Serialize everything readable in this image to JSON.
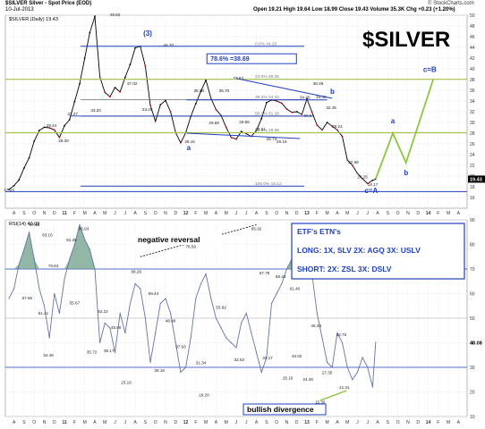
{
  "header": {
    "symbol_line": "$SILVER Silver - Spot Price (EOD)",
    "date": "10-Jul-2013",
    "quote": "Open 19.21  High 19.64  Low 18.99  Close 19.43  Volume 35.3K  Chg +0.23 (+1.20%)",
    "credit": "© StockCharts.com",
    "legend": "$SILVER (Daily) 19.43",
    "rsi_legend": "RSI(14) 40.08"
  },
  "title": "$SILVER",
  "colors": {
    "price": "#000000",
    "down": "#cc0000",
    "channel": "#1f3fbf",
    "fib_green": "#a6c24b",
    "projection": "#8dc63f",
    "rsi_line": "#6674a3",
    "rsi_fill": "#6f9f8a",
    "wave": "#1f3fbf"
  },
  "annotations": {
    "wave3": "(3)",
    "retrace_box": "78.6% =38.69",
    "wave_a1": "a",
    "wave_b1": "b",
    "wave_c_eq_a": "c=A",
    "proj_a": "a",
    "proj_b": "b",
    "proj_c_eq_b": "c=B",
    "negative_reversal": "negative reversal",
    "bullish_divergence": "bullish divergence",
    "etf_title": "ETF's ETN's",
    "etf_long": "LONG: 1X, SLV   2X: AGQ   3X: USLV",
    "etf_short": "SHORT:            2X: ZSL   3X: DSLV"
  },
  "fib_levels": [
    {
      "label": "0.0% 44.20",
      "value": 44.2
    },
    {
      "label": "23.6% 38.05",
      "value": 38.05
    },
    {
      "label": "38.2% 34.24",
      "value": 34.24
    },
    {
      "label": "50.0% 31.16",
      "value": 31.16
    },
    {
      "label": "61.8% 28.08",
      "value": 28.08
    },
    {
      "label": "100.0% 18.12",
      "value": 18.12
    }
  ],
  "chart_data": [
    {
      "type": "line",
      "name": "price",
      "ylim": [
        14,
        50
      ],
      "yticks": [
        16,
        18,
        20,
        22,
        24,
        26,
        28,
        30,
        32,
        34,
        36,
        38,
        40,
        42,
        44,
        46,
        48,
        50
      ],
      "last_value_label": "19.43",
      "x_labels": [
        "A",
        "S",
        "O",
        "N",
        "D",
        "11",
        "F",
        "M",
        "A",
        "M",
        "J",
        "J",
        "A",
        "S",
        "O",
        "N",
        "D",
        "12",
        "F",
        "M",
        "A",
        "M",
        "J",
        "J",
        "A",
        "S",
        "O",
        "N",
        "D",
        "13",
        "F",
        "M",
        "A",
        "M",
        "J",
        "J",
        "A",
        "S",
        "O",
        "N",
        "D",
        "14",
        "F",
        "M",
        "A"
      ],
      "x": [
        0,
        0.5,
        1,
        1.5,
        2,
        2.5,
        3,
        3.5,
        4,
        4.5,
        5,
        5.5,
        6,
        6.5,
        7,
        7.5,
        8,
        8.5,
        9,
        9.5,
        10,
        10.5,
        11,
        11.5,
        12,
        12.5,
        13,
        13.5,
        14,
        14.5,
        15,
        15.5,
        16,
        16.5,
        17,
        17.5,
        18,
        18.5,
        19,
        19.5,
        20,
        20.5,
        21,
        21.5,
        22,
        22.5,
        23,
        23.5,
        24,
        24.5,
        25,
        25.5,
        26,
        26.5,
        27,
        27.5,
        28,
        28.5,
        29,
        29.5,
        30,
        30.5,
        31,
        31.5,
        32,
        32.5,
        33,
        33.5,
        34,
        34.5,
        35,
        35.5,
        36,
        36.3
      ],
      "values": [
        17.5,
        18.2,
        19.3,
        21.5,
        23.4,
        26.5,
        28.5,
        29.1,
        29.0,
        28.6,
        27.2,
        29.4,
        30.5,
        33.9,
        37.2,
        42.0,
        46.7,
        49.8,
        38.5,
        35.6,
        34.8,
        36.5,
        35.7,
        38.4,
        40.8,
        43.9,
        44.2,
        40.5,
        33.2,
        30.2,
        33.3,
        34.1,
        32.0,
        28.1,
        26.2,
        28.1,
        31.1,
        33.5,
        35.8,
        37.9,
        34.5,
        32.4,
        31.3,
        29.1,
        27.2,
        26.9,
        28.3,
        27.9,
        27.4,
        28.5,
        30.7,
        33.7,
        34.2,
        34.0,
        33.6,
        32.5,
        31.9,
        32.0,
        31.5,
        34.4,
        31.9,
        29.5,
        28.6,
        30.0,
        29.3,
        28.6,
        27.4,
        23.0,
        22.0,
        20.5,
        19.5,
        18.6,
        19.2,
        19.43
      ],
      "labels": [
        {
          "x": 0,
          "y": 17.2,
          "t": "17.23"
        },
        {
          "x": 4.2,
          "y": 29.2,
          "t": "29.24"
        },
        {
          "x": 5.4,
          "y": 26.3,
          "t": "26.30"
        },
        {
          "x": 6.3,
          "y": 31.3,
          "t": "31.27"
        },
        {
          "x": 8.6,
          "y": 32.0,
          "t": "33.20"
        },
        {
          "x": 10.5,
          "y": 49.8,
          "t": "49.82"
        },
        {
          "x": 12.2,
          "y": 37.0,
          "t": "37.02"
        },
        {
          "x": 13.7,
          "y": 32.2,
          "t": "33.28"
        },
        {
          "x": 15.8,
          "y": 44.2,
          "t": "44.20"
        },
        {
          "x": 17.9,
          "y": 26.2,
          "t": "26.15"
        },
        {
          "x": 18.8,
          "y": 35.7,
          "t": "35.70"
        },
        {
          "x": 20.3,
          "y": 29.7,
          "t": "29.65"
        },
        {
          "x": 21.3,
          "y": 35.7,
          "t": "35.70"
        },
        {
          "x": 23.3,
          "y": 29.8,
          "t": "29.86"
        },
        {
          "x": 22.7,
          "y": 38.0,
          "t": "37.83"
        },
        {
          "x": 24.9,
          "y": 28.5,
          "t": "28.51"
        },
        {
          "x": 26.0,
          "y": 26.7,
          "t": "26.73"
        },
        {
          "x": 27.0,
          "y": 26.2,
          "t": "26.15"
        },
        {
          "x": 29.3,
          "y": 34.4,
          "t": "34.45"
        },
        {
          "x": 29.7,
          "y": 31.0,
          "t": "30.66"
        },
        {
          "x": 30.9,
          "y": 34.5,
          "t": "34.40"
        },
        {
          "x": 30.6,
          "y": 37.0,
          "t": "36.48"
        },
        {
          "x": 31.9,
          "y": 32.5,
          "t": "32.45"
        },
        {
          "x": 32.5,
          "y": 29.0,
          "t": "29.24"
        },
        {
          "x": 34.1,
          "y": 22.3,
          "t": "22.68"
        },
        {
          "x": 35.0,
          "y": 19.6,
          "t": "20.25"
        },
        {
          "x": 36.0,
          "y": 18.2,
          "t": "18.17"
        }
      ]
    },
    {
      "type": "line",
      "name": "RSI(14)",
      "ylim": [
        10,
        90
      ],
      "yticks": [
        10,
        20,
        30,
        40,
        50,
        60,
        70,
        80,
        90
      ],
      "last_value_label": "40.08",
      "x": [
        0,
        0.5,
        1,
        1.5,
        2,
        2.5,
        3,
        3.5,
        4,
        4.5,
        5,
        5.5,
        6,
        6.5,
        7,
        7.5,
        8,
        8.5,
        9,
        9.5,
        10,
        10.5,
        11,
        11.5,
        12,
        12.5,
        13,
        13.5,
        14,
        14.5,
        15,
        15.5,
        16,
        16.5,
        17,
        17.5,
        18,
        18.5,
        19,
        19.5,
        20,
        20.5,
        21,
        21.5,
        22,
        22.5,
        23,
        23.5,
        24,
        24.5,
        25,
        25.5,
        26,
        26.5,
        27,
        27.5,
        28,
        28.5,
        29,
        29.5,
        30,
        30.5,
        31,
        31.5,
        32,
        32.5,
        33,
        33.5,
        34,
        34.5,
        35,
        35.5,
        36,
        36.3
      ],
      "values": [
        58,
        62,
        72,
        78,
        85,
        74,
        62,
        55,
        42,
        60,
        52,
        66,
        74,
        80,
        88,
        82,
        78,
        70,
        40,
        48,
        46,
        36,
        52,
        44,
        56,
        64,
        62,
        50,
        32,
        44,
        56,
        58,
        52,
        40,
        28,
        30,
        42,
        58,
        64,
        68,
        58,
        50,
        46,
        42,
        40,
        38,
        48,
        52,
        44,
        36,
        28,
        34,
        56,
        60,
        64,
        70,
        74,
        78,
        80,
        85,
        68,
        52,
        42,
        32,
        30,
        44,
        40,
        30,
        25,
        28,
        34,
        30,
        22,
        40.08
      ],
      "labels": [
        {
          "x": 2.5,
          "y": 87.4,
          "t": "87.43"
        },
        {
          "x": 3.8,
          "y": 83.2,
          "t": "83.16"
        },
        {
          "x": 4.4,
          "y": 70.7,
          "t": "70.63"
        },
        {
          "x": 1.8,
          "y": 57.7,
          "t": "57.66"
        },
        {
          "x": 3.4,
          "y": 51.4,
          "t": "51.41"
        },
        {
          "x": 3.9,
          "y": 34.4,
          "t": "34.48"
        },
        {
          "x": 6.2,
          "y": 81.3,
          "t": "81.25"
        },
        {
          "x": 7.4,
          "y": 85.9,
          "t": "85.93"
        },
        {
          "x": 6.5,
          "y": 55.7,
          "t": "55.67"
        },
        {
          "x": 8.2,
          "y": 35.7,
          "t": "35.72"
        },
        {
          "x": 9.3,
          "y": 52.2,
          "t": "52.22"
        },
        {
          "x": 9.9,
          "y": 36.2,
          "t": "36.17"
        },
        {
          "x": 10.6,
          "y": 45.6,
          "t": "45.56"
        },
        {
          "x": 11.6,
          "y": 23.2,
          "t": "23.19"
        },
        {
          "x": 12.6,
          "y": 68.3,
          "t": "68.29"
        },
        {
          "x": 14.3,
          "y": 59.4,
          "t": "59.44"
        },
        {
          "x": 14.9,
          "y": 28.2,
          "t": "28.16"
        },
        {
          "x": 16.0,
          "y": 48.4,
          "t": "48.49"
        },
        {
          "x": 17.0,
          "y": 37.9,
          "t": "37.93"
        },
        {
          "x": 18.0,
          "y": 78.6,
          "t": "78.59"
        },
        {
          "x": 19.0,
          "y": 31.3,
          "t": "31.34"
        },
        {
          "x": 19.3,
          "y": 18.2,
          "t": "18.20"
        },
        {
          "x": 21.0,
          "y": 53.9,
          "t": "53.92"
        },
        {
          "x": 22.8,
          "y": 32.6,
          "t": "32.62"
        },
        {
          "x": 24.5,
          "y": 85.9,
          "t": "85.92"
        },
        {
          "x": 25.3,
          "y": 67.8,
          "t": "67.78"
        },
        {
          "x": 25.6,
          "y": 33.2,
          "t": "33.17"
        },
        {
          "x": 26.9,
          "y": 66.4,
          "t": "66.43"
        },
        {
          "x": 28.3,
          "y": 61.4,
          "t": "61.40"
        },
        {
          "x": 27.6,
          "y": 25.1,
          "t": "25.16"
        },
        {
          "x": 28.5,
          "y": 34.0,
          "t": "34.02"
        },
        {
          "x": 30.4,
          "y": 46.4,
          "t": "46.43"
        },
        {
          "x": 29.6,
          "y": 24.5,
          "t": "24.46"
        },
        {
          "x": 31.5,
          "y": 27.3,
          "t": "27.35"
        },
        {
          "x": 32.9,
          "y": 42.8,
          "t": "42.75"
        },
        {
          "x": 33.2,
          "y": 21.3,
          "t": "21.31"
        },
        {
          "x": 30.8,
          "y": 15.3,
          "t": "15.30"
        }
      ]
    }
  ]
}
